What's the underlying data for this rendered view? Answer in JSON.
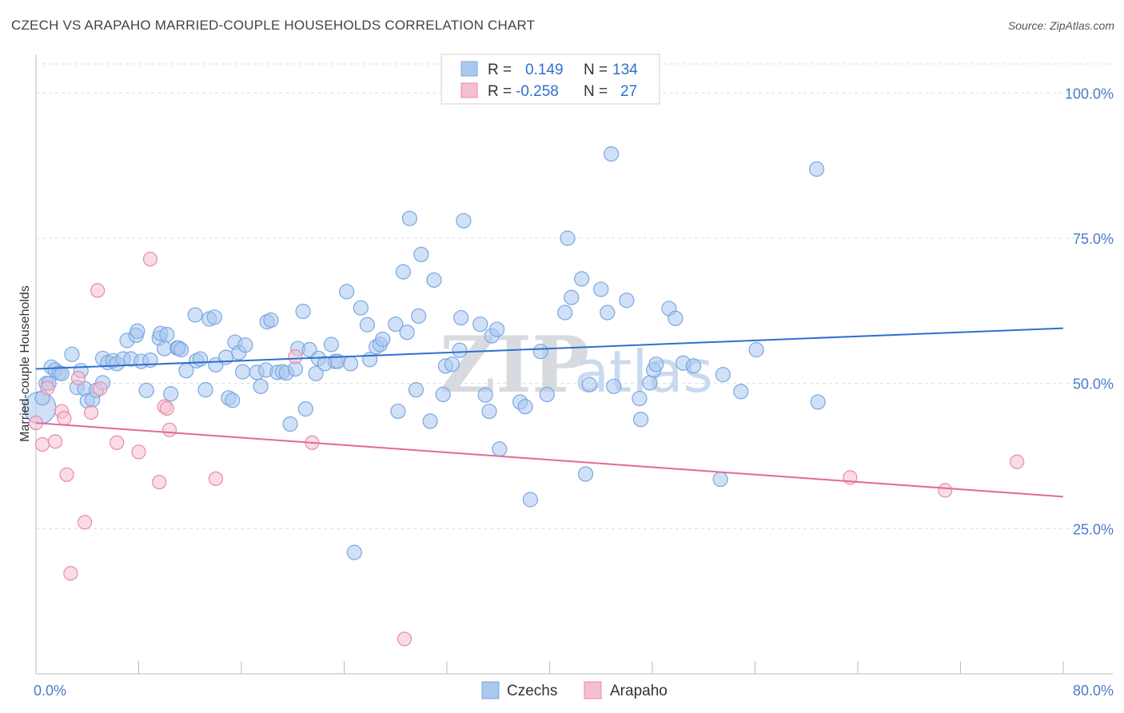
{
  "title": "CZECH VS ARAPAHO MARRIED-COUPLE HOUSEHOLDS CORRELATION CHART",
  "source": "Source: ZipAtlas.com",
  "colors": {
    "czechs_fill": "#a9c8f0",
    "czechs_stroke": "#7aa6e0",
    "czechs_line": "#2f6fd0",
    "arapaho_fill": "#f6bfd0",
    "arapaho_stroke": "#e98aa8",
    "arapaho_line": "#e26a93",
    "grid": "#dcdcdc",
    "tick_text": "#4a7cc9"
  },
  "legend": {
    "rows": [
      {
        "r_label": "R =",
        "r_value": "0.149",
        "n_label": "N =",
        "n_value": "134"
      },
      {
        "r_label": "R =",
        "r_value": "-0.258",
        "n_label": "N =",
        "n_value": "27"
      }
    ]
  },
  "watermark": {
    "zip": "ZIP",
    "atlas": "atlas"
  },
  "chart_data": {
    "type": "scatter",
    "title": "CZECH VS ARAPAHO MARRIED-COUPLE HOUSEHOLDS CORRELATION CHART",
    "xlabel": "",
    "ylabel": "Married-couple Households",
    "xlim": [
      0,
      80
    ],
    "ylim": [
      0,
      105
    ],
    "x_tick_labels": [
      "0.0%",
      "80.0%"
    ],
    "y_tick_values": [
      25,
      50,
      75,
      100
    ],
    "y_tick_labels": [
      "25.0%",
      "50.0%",
      "75.0%",
      "100.0%"
    ],
    "legend_placement": "bottom-center",
    "series": [
      {
        "name": "Czechs",
        "R": 0.149,
        "N": 134,
        "trend": {
          "x": [
            0,
            80
          ],
          "y": [
            52.5,
            59.5
          ]
        },
        "points": [
          [
            0.3,
            45.8
          ],
          [
            0.5,
            47.5
          ],
          [
            0.8,
            50.0
          ],
          [
            1.0,
            50.0
          ],
          [
            1.2,
            52.8
          ],
          [
            1.5,
            52.3
          ],
          [
            1.8,
            51.8
          ],
          [
            2.0,
            51.7
          ],
          [
            2.8,
            55.0
          ],
          [
            3.2,
            49.3
          ],
          [
            3.5,
            52.2
          ],
          [
            3.8,
            49.1
          ],
          [
            4.0,
            47.0
          ],
          [
            4.4,
            47.2
          ],
          [
            4.7,
            48.8
          ],
          [
            5.2,
            50.1
          ],
          [
            5.2,
            54.3
          ],
          [
            5.6,
            53.6
          ],
          [
            6.0,
            53.9
          ],
          [
            6.3,
            53.4
          ],
          [
            6.8,
            54.2
          ],
          [
            7.1,
            57.4
          ],
          [
            7.4,
            54.2
          ],
          [
            7.8,
            58.3
          ],
          [
            7.9,
            59.0
          ],
          [
            8.2,
            53.8
          ],
          [
            8.6,
            48.8
          ],
          [
            8.9,
            54.0
          ],
          [
            9.6,
            57.8
          ],
          [
            9.7,
            58.6
          ],
          [
            10.0,
            56.0
          ],
          [
            10.2,
            58.4
          ],
          [
            10.5,
            48.2
          ],
          [
            11.0,
            56.1
          ],
          [
            11.1,
            56.1
          ],
          [
            11.3,
            55.8
          ],
          [
            11.7,
            52.2
          ],
          [
            12.4,
            61.8
          ],
          [
            12.5,
            53.9
          ],
          [
            12.8,
            54.2
          ],
          [
            13.2,
            48.9
          ],
          [
            13.5,
            61.1
          ],
          [
            13.9,
            61.4
          ],
          [
            14.0,
            53.2
          ],
          [
            14.8,
            54.5
          ],
          [
            15.0,
            47.5
          ],
          [
            15.3,
            47.1
          ],
          [
            15.5,
            57.1
          ],
          [
            15.8,
            55.3
          ],
          [
            16.1,
            52.0
          ],
          [
            16.3,
            56.6
          ],
          [
            17.2,
            51.9
          ],
          [
            17.5,
            49.5
          ],
          [
            17.9,
            52.3
          ],
          [
            18.0,
            60.6
          ],
          [
            18.3,
            60.9
          ],
          [
            18.8,
            51.9
          ],
          [
            19.2,
            52.0
          ],
          [
            19.5,
            51.8
          ],
          [
            19.8,
            43.0
          ],
          [
            20.2,
            52.5
          ],
          [
            20.4,
            56.0
          ],
          [
            20.8,
            62.4
          ],
          [
            21.0,
            45.6
          ],
          [
            21.3,
            55.8
          ],
          [
            21.8,
            51.7
          ],
          [
            22.0,
            54.3
          ],
          [
            22.5,
            53.4
          ],
          [
            23.0,
            56.7
          ],
          [
            23.3,
            53.8
          ],
          [
            23.5,
            53.8
          ],
          [
            24.2,
            65.8
          ],
          [
            24.5,
            53.4
          ],
          [
            24.8,
            20.9
          ],
          [
            25.3,
            63.0
          ],
          [
            25.8,
            60.1
          ],
          [
            26.0,
            54.1
          ],
          [
            26.5,
            56.3
          ],
          [
            26.8,
            56.7
          ],
          [
            27.0,
            57.6
          ],
          [
            28.0,
            60.2
          ],
          [
            28.2,
            45.2
          ],
          [
            28.6,
            69.2
          ],
          [
            28.9,
            58.8
          ],
          [
            29.1,
            78.4
          ],
          [
            29.6,
            48.9
          ],
          [
            29.8,
            61.6
          ],
          [
            30.0,
            72.2
          ],
          [
            30.7,
            43.5
          ],
          [
            31.0,
            67.8
          ],
          [
            31.7,
            48.1
          ],
          [
            31.9,
            53.0
          ],
          [
            32.4,
            53.3
          ],
          [
            33.0,
            55.7
          ],
          [
            33.1,
            61.3
          ],
          [
            33.3,
            78.0
          ],
          [
            34.6,
            60.2
          ],
          [
            35.0,
            48.0
          ],
          [
            35.3,
            45.2
          ],
          [
            35.5,
            58.2
          ],
          [
            35.9,
            59.3
          ],
          [
            36.1,
            38.7
          ],
          [
            37.7,
            46.8
          ],
          [
            38.1,
            46.0
          ],
          [
            38.5,
            30.0
          ],
          [
            39.3,
            55.5
          ],
          [
            39.8,
            48.1
          ],
          [
            41.2,
            62.2
          ],
          [
            41.4,
            75.0
          ],
          [
            41.7,
            64.8
          ],
          [
            42.5,
            68.0
          ],
          [
            42.8,
            34.4
          ],
          [
            43.1,
            49.8
          ],
          [
            44.0,
            66.2
          ],
          [
            44.5,
            62.2
          ],
          [
            44.8,
            89.5
          ],
          [
            45.0,
            49.5
          ],
          [
            46.0,
            64.3
          ],
          [
            47.0,
            47.4
          ],
          [
            47.1,
            43.8
          ],
          [
            47.8,
            50.1
          ],
          [
            48.1,
            52.3
          ],
          [
            48.3,
            53.3
          ],
          [
            49.3,
            62.9
          ],
          [
            49.8,
            61.2
          ],
          [
            50.4,
            53.5
          ],
          [
            51.2,
            53.0
          ],
          [
            53.3,
            33.5
          ],
          [
            53.5,
            51.5
          ],
          [
            54.9,
            48.6
          ],
          [
            56.1,
            55.8
          ],
          [
            60.8,
            86.9
          ],
          [
            60.9,
            46.8
          ]
        ]
      },
      {
        "name": "Arapaho",
        "R": -0.258,
        "N": 27,
        "trend": {
          "x": [
            0,
            80
          ],
          "y": [
            43.2,
            30.5
          ]
        },
        "points": [
          [
            0.0,
            43.2
          ],
          [
            0.5,
            39.5
          ],
          [
            0.9,
            49.2
          ],
          [
            1.5,
            40.0
          ],
          [
            2.0,
            45.2
          ],
          [
            2.2,
            44.0
          ],
          [
            2.4,
            34.3
          ],
          [
            2.7,
            17.3
          ],
          [
            3.3,
            50.9
          ],
          [
            3.8,
            26.1
          ],
          [
            4.3,
            45.0
          ],
          [
            4.8,
            66.0
          ],
          [
            5.0,
            49.1
          ],
          [
            6.3,
            39.8
          ],
          [
            8.0,
            38.2
          ],
          [
            8.9,
            71.4
          ],
          [
            9.6,
            33.0
          ],
          [
            10.0,
            46.0
          ],
          [
            10.2,
            45.7
          ],
          [
            10.4,
            42.0
          ],
          [
            14.0,
            33.6
          ],
          [
            20.2,
            54.6
          ],
          [
            21.5,
            39.8
          ],
          [
            28.7,
            6.0
          ],
          [
            63.4,
            33.8
          ],
          [
            70.8,
            31.6
          ],
          [
            76.4,
            36.5
          ]
        ]
      }
    ]
  },
  "bottom_legend": {
    "czechs": "Czechs",
    "arapaho": "Arapaho"
  }
}
